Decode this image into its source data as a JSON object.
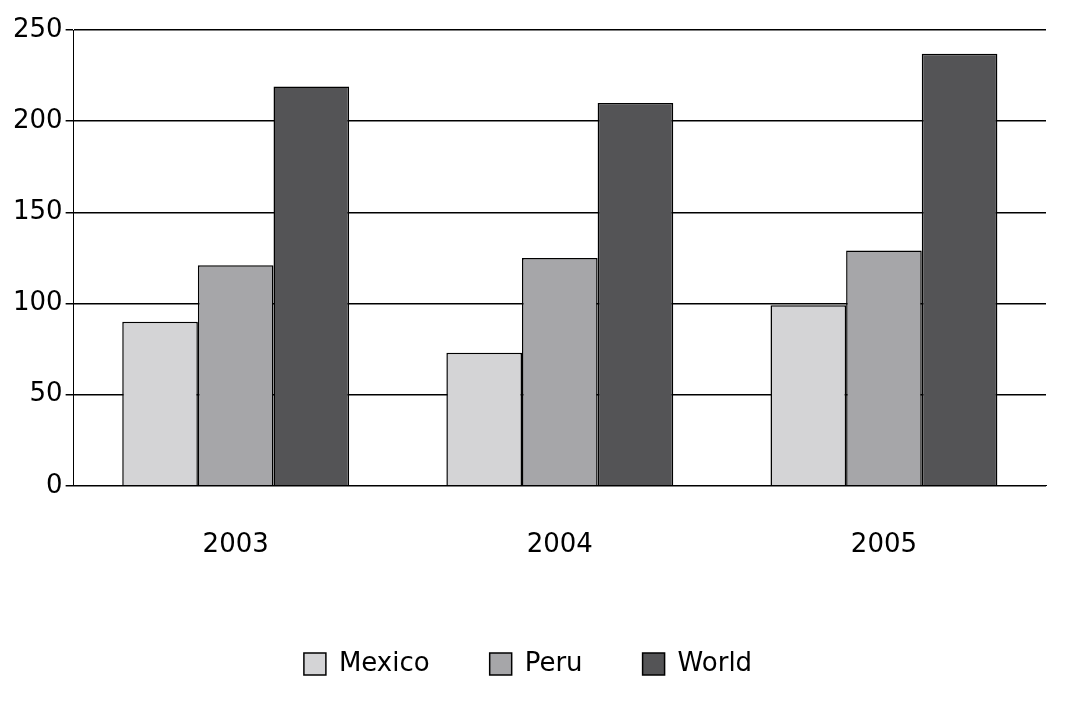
{
  "chart_data": {
    "type": "bar",
    "categories": [
      "2003",
      "2004",
      "2005"
    ],
    "series": [
      {
        "name": "Mexico",
        "color": "#d4d4d6",
        "values": [
          90,
          73,
          99
        ]
      },
      {
        "name": "Peru",
        "color": "#a6a6a9",
        "values": [
          121,
          125,
          129
        ]
      },
      {
        "name": "World",
        "color": "#545456",
        "values": [
          219,
          210,
          237
        ]
      }
    ],
    "ylim": [
      0,
      250
    ],
    "yticks": [
      0,
      50,
      100,
      150,
      200,
      250
    ],
    "grid": "y",
    "legend": "bottom"
  }
}
